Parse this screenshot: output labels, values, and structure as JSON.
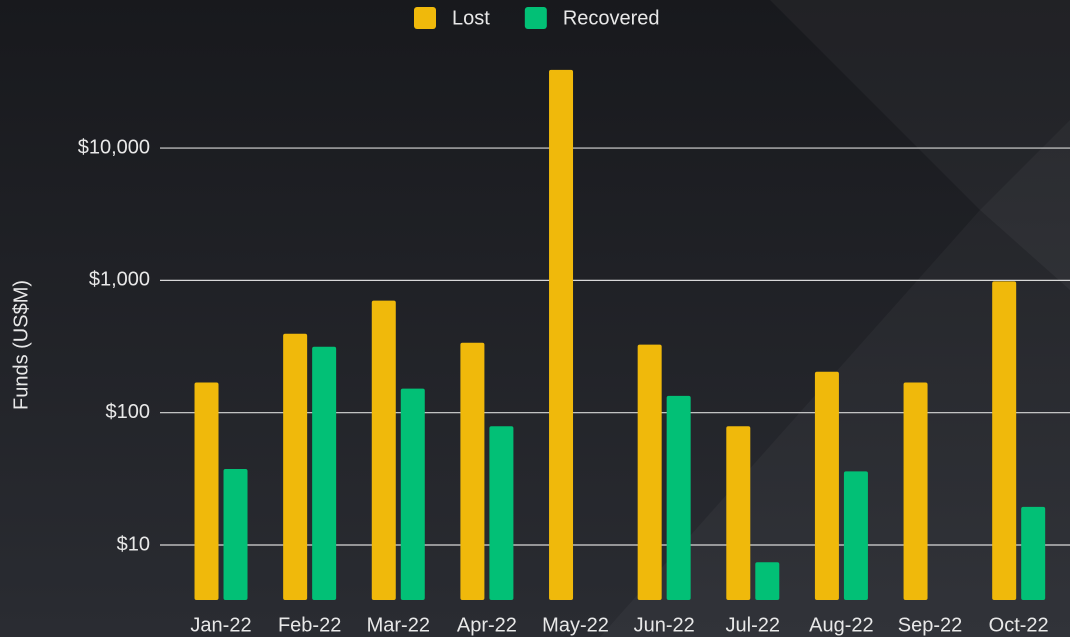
{
  "chart_data": {
    "type": "bar",
    "y_label": "Funds (US$M)",
    "log_scale": true,
    "grid": true,
    "legend_position": "top",
    "categories": [
      "Jan-22",
      "Feb-22",
      "Mar-22",
      "Apr-22",
      "May-22",
      "Jun-22",
      "Jul-22",
      "Aug-22",
      "Sep-22",
      "Oct-22"
    ],
    "series": [
      {
        "name": "Lost",
        "color": "#f0b90b",
        "values": [
          169,
          395,
          703,
          338,
          39000,
          327,
          79,
          204,
          169,
          982
        ]
      },
      {
        "name": "Recovered",
        "color": "#02c076",
        "values": [
          37.5,
          315,
          152,
          79,
          null,
          134,
          7.4,
          36,
          null,
          19.4
        ]
      }
    ],
    "ylim": [
      3.84,
      65600
    ],
    "yticks": [
      {
        "value": 10,
        "label": "$10"
      },
      {
        "value": 100,
        "label": "$100"
      },
      {
        "value": 1000,
        "label": "$1,000"
      },
      {
        "value": 10000,
        "label": "$10,000"
      }
    ]
  }
}
